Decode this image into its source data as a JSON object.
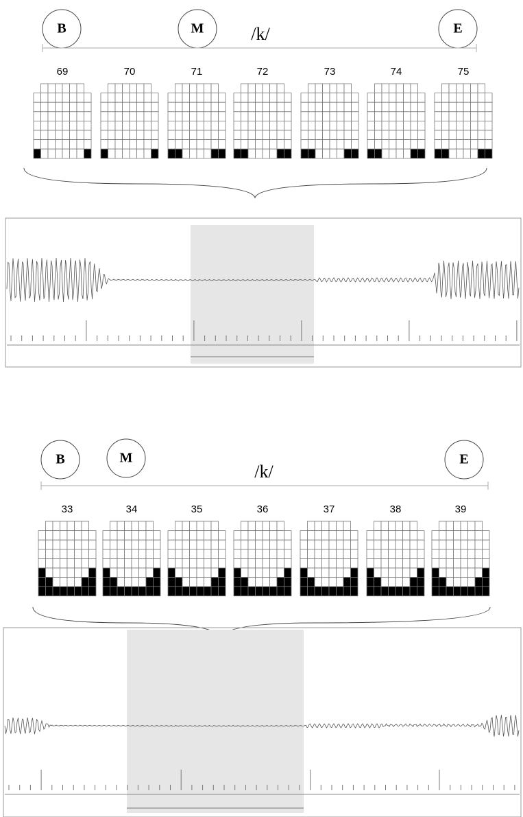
{
  "panels": [
    {
      "labels": {
        "b": "B",
        "m": "M",
        "e": "E"
      },
      "segment": "/k/",
      "frames": [
        69,
        70,
        71,
        72,
        73,
        74,
        75
      ]
    },
    {
      "labels": {
        "b": "B",
        "m": "M",
        "e": "E"
      },
      "segment": "/k/",
      "frames": [
        33,
        34,
        35,
        36,
        37,
        38,
        39
      ]
    }
  ]
}
